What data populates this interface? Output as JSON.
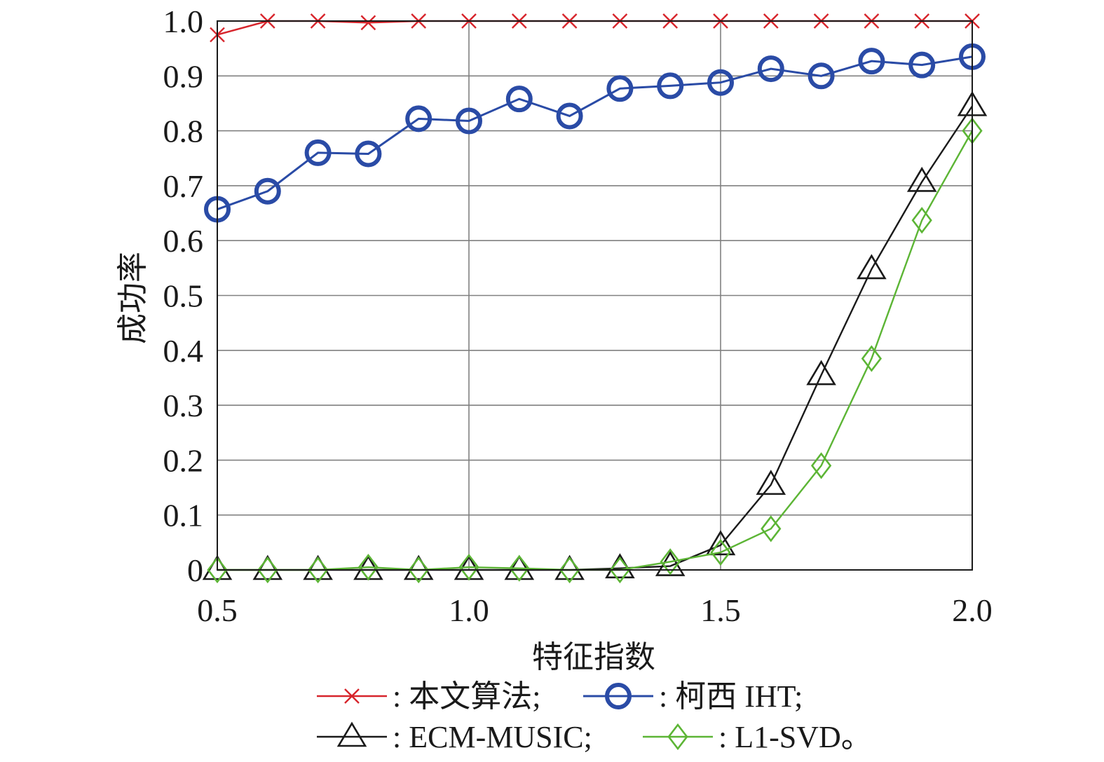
{
  "chart_data": {
    "type": "line",
    "xlabel": "特征指数",
    "ylabel": "成功率",
    "xlim": [
      0.5,
      2.0
    ],
    "ylim": [
      0,
      1.0
    ],
    "xticks": [
      0.5,
      1.0,
      1.5,
      2.0
    ],
    "xtick_labels": [
      "0.5",
      "1.0",
      "1.5",
      "2.0"
    ],
    "yticks": [
      0,
      0.1,
      0.2,
      0.3,
      0.4,
      0.5,
      0.6,
      0.7,
      0.8,
      0.9,
      1.0
    ],
    "ytick_labels": [
      "0",
      "0.1",
      "0.2",
      "0.3",
      "0.4",
      "0.5",
      "0.6",
      "0.7",
      "0.8",
      "0.9",
      "1.0"
    ],
    "grid": true,
    "legend_position": "bottom",
    "x": [
      0.5,
      0.6,
      0.7,
      0.8,
      0.9,
      1.0,
      1.1,
      1.2,
      1.3,
      1.4,
      1.5,
      1.6,
      1.7,
      1.8,
      1.9,
      2.0
    ],
    "series": [
      {
        "key": "proposed",
        "legend_label": ": 本文算法;",
        "color": "#d7252c",
        "marker": "x",
        "values": [
          0.975,
          1.0,
          1.0,
          0.997,
          1.0,
          1.0,
          1.0,
          1.0,
          1.0,
          1.0,
          1.0,
          1.0,
          1.0,
          1.0,
          1.0,
          1.0
        ]
      },
      {
        "key": "cauchy_iht",
        "legend_label": ": 柯西 IHT;",
        "color": "#2a4ba6",
        "marker": "circle",
        "values": [
          0.657,
          0.69,
          0.76,
          0.758,
          0.822,
          0.818,
          0.858,
          0.827,
          0.877,
          0.882,
          0.888,
          0.913,
          0.9,
          0.927,
          0.92,
          0.935
        ]
      },
      {
        "key": "ecm_music",
        "legend_label": ": ECM-MUSIC;",
        "color": "#1a1a1a",
        "marker": "triangle",
        "values": [
          0.0,
          0.0,
          0.0,
          0.0,
          0.0,
          0.0,
          0.0,
          0.0,
          0.003,
          0.007,
          0.045,
          0.155,
          0.355,
          0.548,
          0.707,
          0.845
        ]
      },
      {
        "key": "l1_svd",
        "legend_label": ": L1-SVD。",
        "color": "#5cb535",
        "marker": "diamond",
        "values": [
          0.0,
          0.0,
          0.0,
          0.005,
          0.0,
          0.005,
          0.003,
          0.0,
          0.0,
          0.015,
          0.032,
          0.075,
          0.19,
          0.385,
          0.637,
          0.8
        ]
      }
    ]
  }
}
